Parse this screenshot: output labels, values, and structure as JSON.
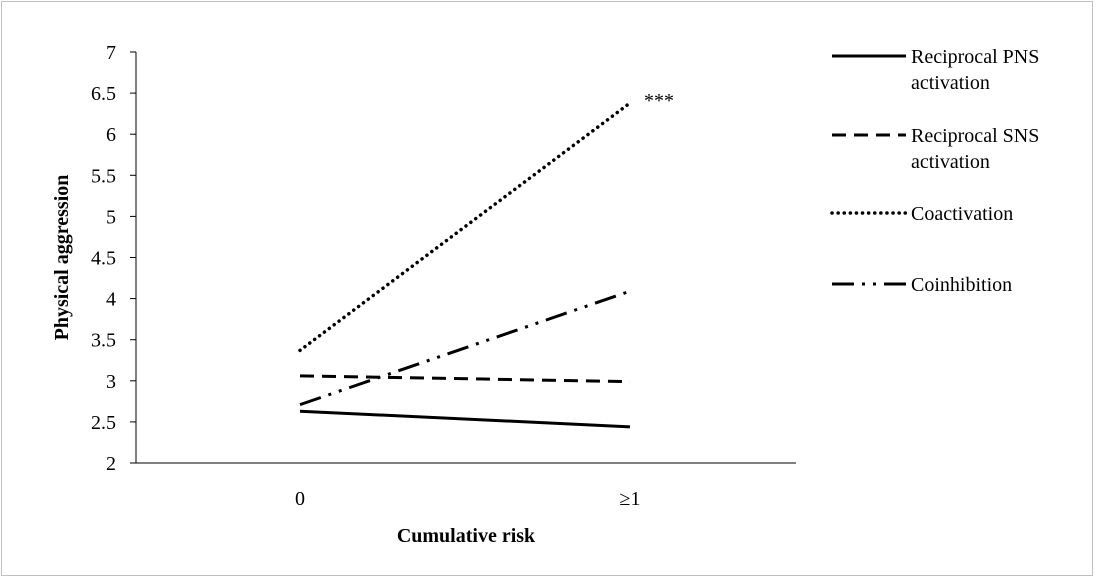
{
  "chart_data": {
    "type": "line",
    "title": "",
    "xlabel": "Cumulative risk",
    "ylabel": "Physical aggression",
    "categories": [
      "0",
      "≥1"
    ],
    "ylim": [
      2,
      7
    ],
    "yticks": [
      "2",
      "2.5",
      "3",
      "3.5",
      "4",
      "4.5",
      "5",
      "5.5",
      "6",
      "6.5",
      "7"
    ],
    "grid": false,
    "legend_position": "right",
    "series": [
      {
        "name_lines": [
          "Reciprocal PNS",
          "activation"
        ],
        "name": "Reciprocal PNS activation",
        "values": [
          2.63,
          2.44
        ],
        "style": "solid",
        "color": "#000000"
      },
      {
        "name_lines": [
          "Reciprocal SNS",
          "activation"
        ],
        "name": "Reciprocal SNS activation",
        "values": [
          3.06,
          2.99
        ],
        "style": "dashed",
        "color": "#000000"
      },
      {
        "name_lines": [
          "Coactivation"
        ],
        "name": "Coactivation",
        "values": [
          3.37,
          6.38
        ],
        "style": "dotted",
        "color": "#000000"
      },
      {
        "name_lines": [
          "Coinhibition"
        ],
        "name": "Coinhibition",
        "values": [
          2.71,
          4.09
        ],
        "style": "dash-dot",
        "color": "#000000"
      }
    ],
    "annotations": [
      {
        "text": "***",
        "series": "Coactivation",
        "category": "≥1"
      }
    ]
  }
}
